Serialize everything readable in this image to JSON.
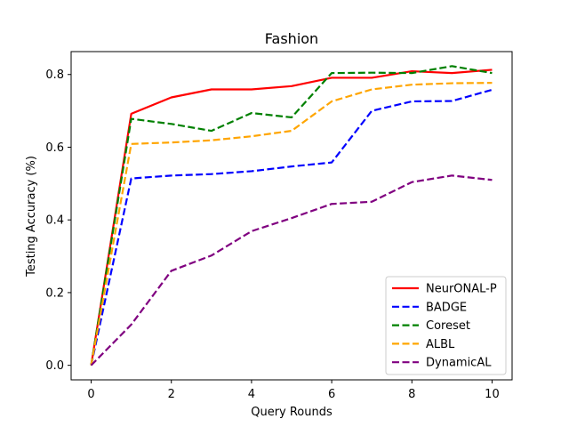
{
  "chart_data": {
    "type": "line",
    "title": "Fashion",
    "xlabel": "Query Rounds",
    "ylabel": "Testing Accuracy (%)",
    "xlim": [
      -0.5,
      10.5
    ],
    "ylim": [
      -0.04,
      0.863
    ],
    "xticks": [
      0,
      2,
      4,
      6,
      8,
      10
    ],
    "xtick_labels": [
      "0",
      "2",
      "4",
      "6",
      "8",
      "10"
    ],
    "yticks": [
      0.0,
      0.2,
      0.4,
      0.6,
      0.8
    ],
    "ytick_labels": [
      "0.0",
      "0.2",
      "0.4",
      "0.6",
      "0.8"
    ],
    "grid": false,
    "legend_position": "lower-right",
    "x": [
      0,
      1,
      2,
      3,
      4,
      5,
      6,
      7,
      8,
      9,
      10
    ],
    "series": [
      {
        "name": "NeurONAL-P",
        "color": "#ff0000",
        "dash": "solid",
        "values": [
          0.0,
          0.692,
          0.737,
          0.759,
          0.759,
          0.768,
          0.791,
          0.791,
          0.809,
          0.804,
          0.813
        ]
      },
      {
        "name": "BADGE",
        "color": "#0000ff",
        "dash": "dashed",
        "values": [
          0.0,
          0.514,
          0.522,
          0.526,
          0.534,
          0.547,
          0.558,
          0.7,
          0.726,
          0.727,
          0.758
        ]
      },
      {
        "name": "Coreset",
        "color": "#008000",
        "dash": "dashed",
        "values": [
          0.0,
          0.678,
          0.664,
          0.645,
          0.694,
          0.682,
          0.804,
          0.805,
          0.804,
          0.823,
          0.804
        ]
      },
      {
        "name": "ALBL",
        "color": "#ffa500",
        "dash": "dashed",
        "values": [
          0.0,
          0.609,
          0.613,
          0.619,
          0.63,
          0.645,
          0.726,
          0.759,
          0.772,
          0.776,
          0.777
        ]
      },
      {
        "name": "DynamicAL",
        "color": "#800080",
        "dash": "dashed",
        "values": [
          0.0,
          0.112,
          0.26,
          0.302,
          0.369,
          0.405,
          0.444,
          0.45,
          0.504,
          0.522,
          0.51
        ]
      }
    ]
  }
}
